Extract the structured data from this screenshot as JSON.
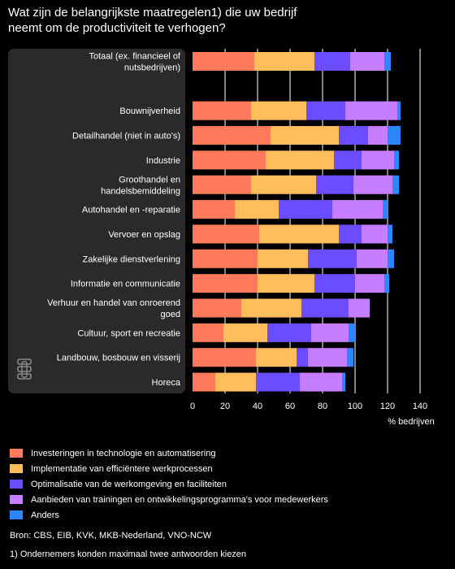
{
  "title_lines": [
    "Wat zijn de belangrijkste maatregelen1) die uw bedrijf",
    "neemt om de productiviteit te verhogen?"
  ],
  "colors": {
    "background": "#000000",
    "panel": "#2a2a2a",
    "text": "#ffffff",
    "series": [
      "#ff7a5a",
      "#ffbd5c",
      "#6c4cff",
      "#c77dff",
      "#2e86ff"
    ]
  },
  "logo_text": "cbs",
  "chart_data": {
    "type": "bar",
    "orientation": "horizontal",
    "stacked": true,
    "categories": [
      "Totaal (ex. financieel of nutsbedrijven)",
      "",
      "Bouwnijverheid",
      "Detailhandel (niet in auto's)",
      "Industrie",
      "Groothandel en handelsbemiddeling",
      "Autohandel en -reparatie",
      "Vervoer en opslag",
      "Zakelijke dienstverlening",
      "Informatie en communicatie",
      "Verhuur en handel van onroerend goed",
      "Cultuur, sport en recreatie",
      "Landbouw, bosbouw en visserij",
      "Horeca"
    ],
    "series": [
      {
        "name": "Investeringen in technologie en automatisering",
        "values": [
          38,
          null,
          36,
          48,
          45,
          36,
          26,
          41,
          40,
          40,
          30,
          19,
          39,
          14
        ]
      },
      {
        "name": "Implementatie van efficiëntere werkprocessen",
        "values": [
          37,
          null,
          34,
          42,
          42,
          40,
          27,
          49,
          31,
          35,
          37,
          27,
          25,
          25
        ]
      },
      {
        "name": "Optimalisatie van de werkomgeving en faciliteiten",
        "values": [
          22,
          null,
          24,
          18,
          17,
          23,
          33,
          14,
          30,
          25,
          29,
          27,
          7,
          27
        ]
      },
      {
        "name": "Aanbieden van trainingen en ontwikkelingsprogramma's voor medewerkers",
        "values": [
          21,
          null,
          32,
          12,
          20,
          24,
          31,
          16,
          19,
          18,
          13,
          23,
          24,
          26
        ]
      },
      {
        "name": "Anders",
        "values": [
          4,
          null,
          2,
          8,
          3,
          4,
          3,
          3,
          4,
          3,
          0,
          4,
          4,
          2
        ]
      }
    ],
    "xlim": [
      0,
      150
    ],
    "xticks": [
      0,
      20,
      40,
      60,
      80,
      100,
      120,
      140
    ],
    "xlabel": "% bedrijven",
    "grid": true,
    "legend_position": "bottom"
  },
  "source": "Bron: CBS, EIB, KVK, MKB-Nederland, VNO-NCW",
  "footnote": "1) Ondernemers konden maximaal twee antwoorden kiezen"
}
